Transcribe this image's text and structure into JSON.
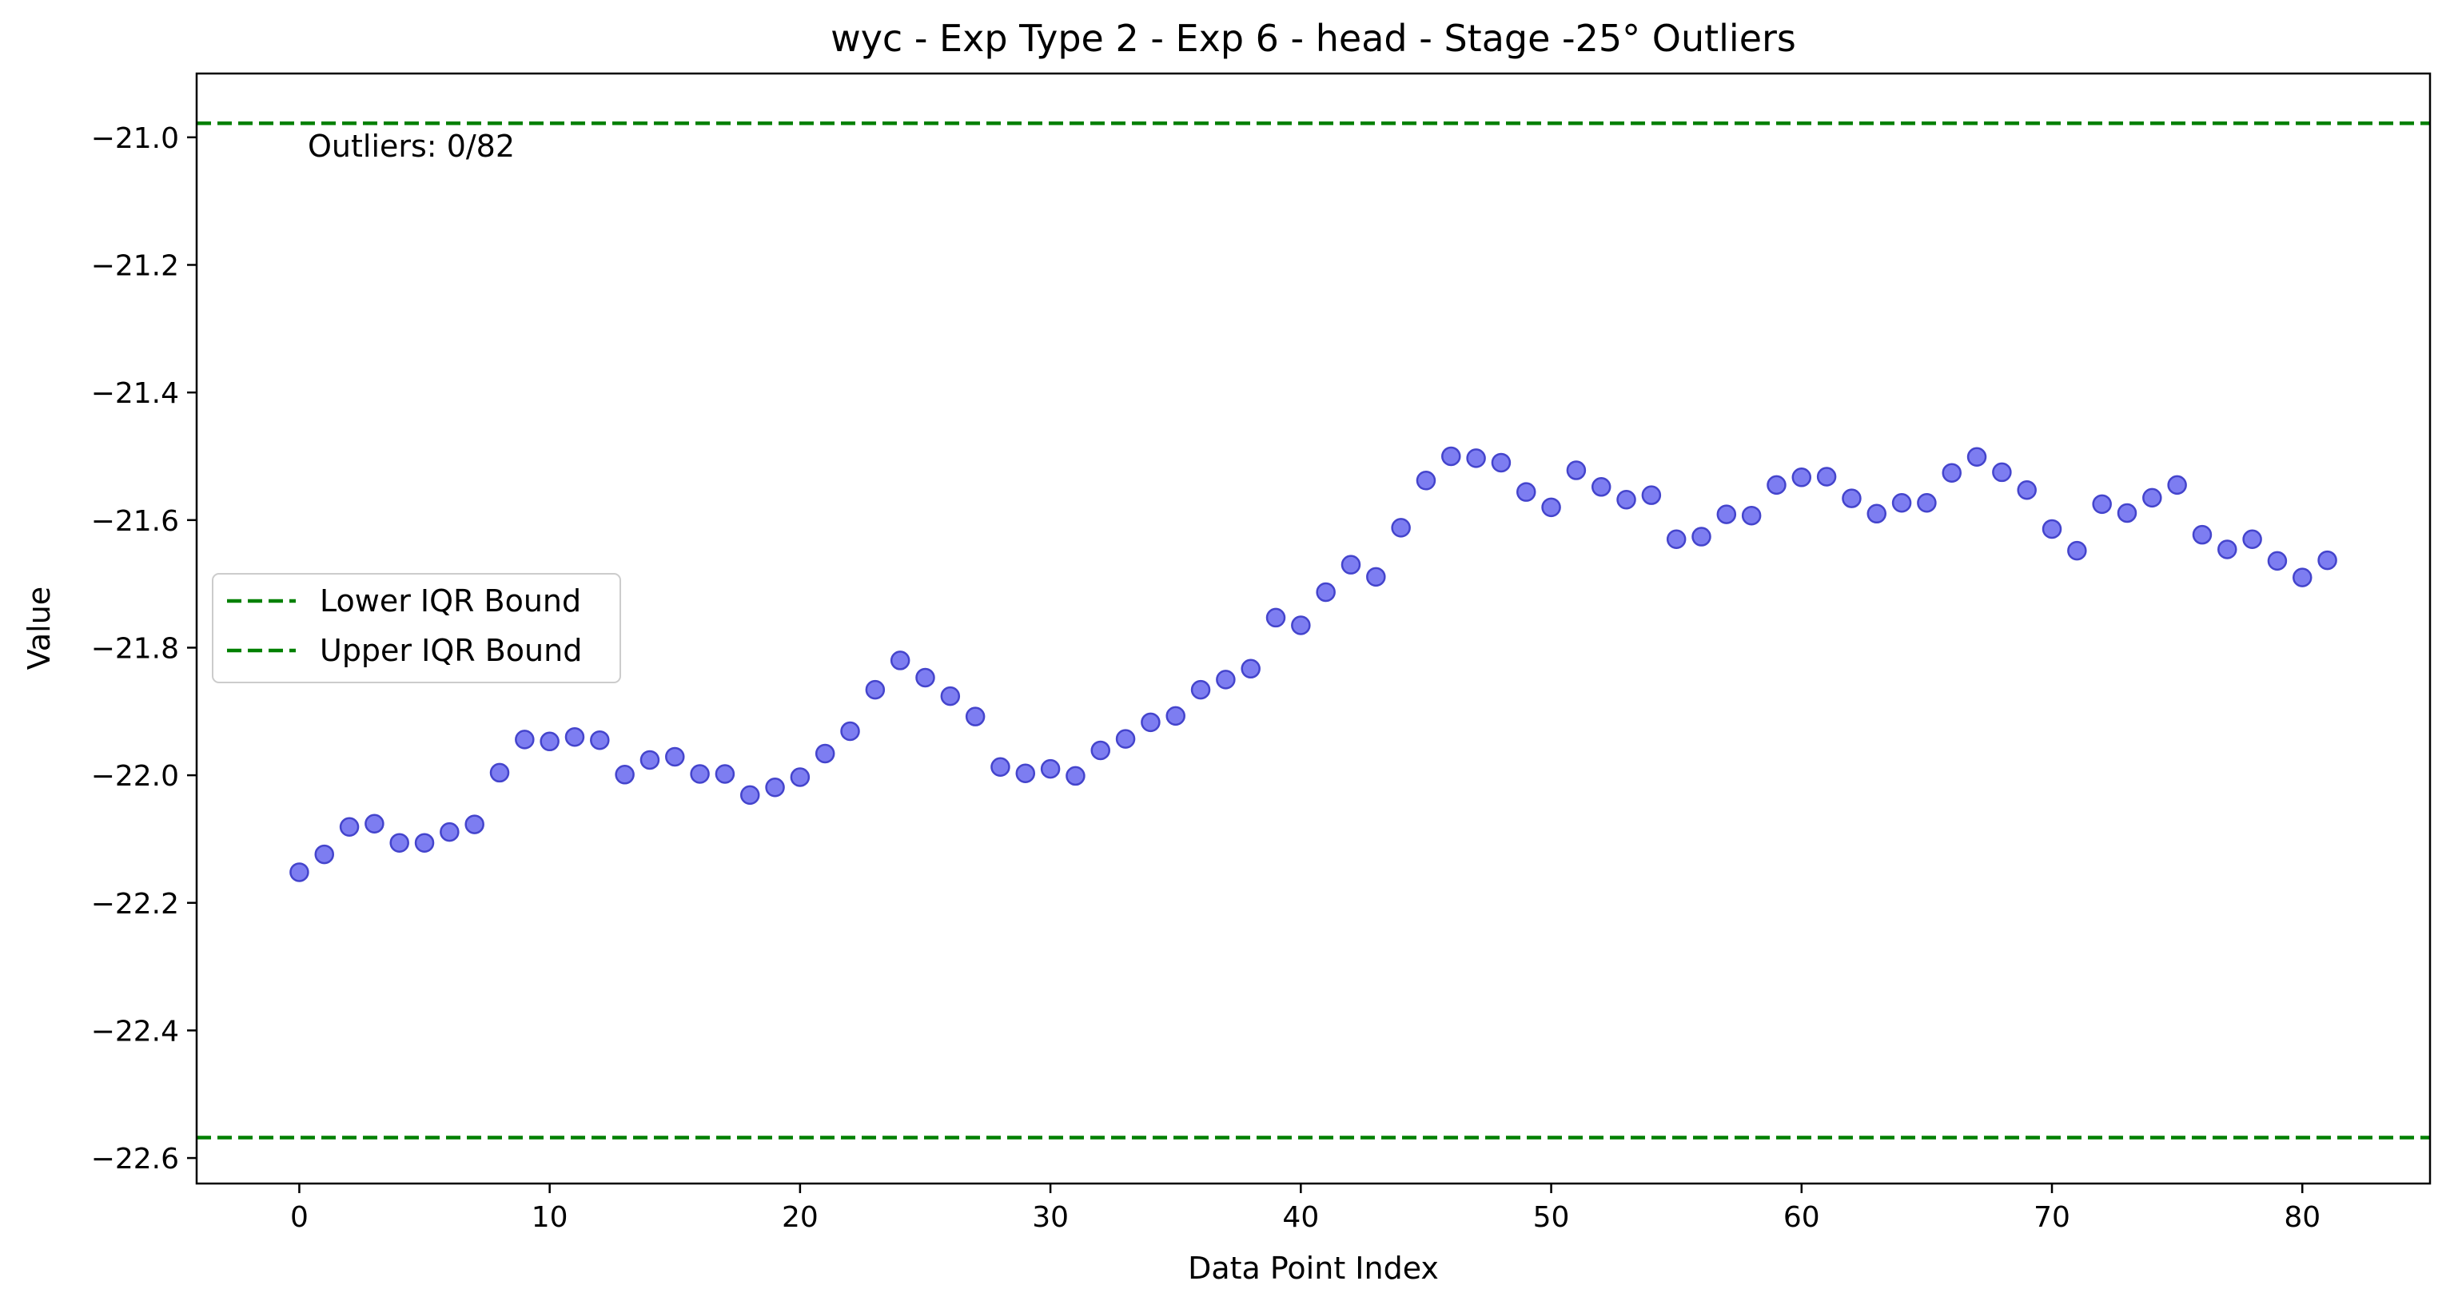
{
  "chart_data": {
    "type": "scatter",
    "title": "wyc - Exp Type 2 - Exp 6 - head - Stage -25° Outliers",
    "xlabel": "Data Point Index",
    "ylabel": "Value",
    "xlim": [
      -4.1,
      85.1
    ],
    "ylim": [
      -22.64,
      -20.9
    ],
    "x_ticks": [
      0,
      10,
      20,
      30,
      40,
      50,
      60,
      70,
      80
    ],
    "y_ticks": [
      -21.0,
      -21.2,
      -21.4,
      -21.6,
      -21.8,
      -22.0,
      -22.2,
      -22.4,
      -22.6
    ],
    "x_tick_labels": [
      "0",
      "10",
      "20",
      "30",
      "40",
      "50",
      "60",
      "70",
      "80"
    ],
    "y_tick_labels": [
      "−21.0",
      "−21.2",
      "−21.4",
      "−21.6",
      "−21.8",
      "−22.0",
      "−22.2",
      "−22.4",
      "−22.6"
    ],
    "grid": false,
    "legend_position": "center-left",
    "series": [
      {
        "marker_color": "#6666ee",
        "marker_edge_color": "#4444cc",
        "x": [
          0,
          1,
          2,
          3,
          4,
          5,
          6,
          7,
          8,
          9,
          10,
          11,
          12,
          13,
          14,
          15,
          16,
          17,
          18,
          19,
          20,
          21,
          22,
          23,
          24,
          25,
          26,
          27,
          28,
          29,
          30,
          31,
          32,
          33,
          34,
          35,
          36,
          37,
          38,
          39,
          40,
          41,
          42,
          43,
          44,
          45,
          46,
          47,
          48,
          49,
          50,
          51,
          52,
          53,
          54,
          55,
          56,
          57,
          58,
          59,
          60,
          61,
          62,
          63,
          64,
          65,
          66,
          67,
          68,
          69,
          70,
          71,
          72,
          73,
          74,
          75,
          76,
          77,
          78,
          79,
          80,
          81
        ],
        "y": [
          -22.152,
          -22.124,
          -22.081,
          -22.076,
          -22.106,
          -22.106,
          -22.089,
          -22.077,
          -21.996,
          -21.944,
          -21.947,
          -21.94,
          -21.945,
          -21.999,
          -21.976,
          -21.971,
          -21.998,
          -21.998,
          -22.031,
          -22.019,
          -22.003,
          -21.966,
          -21.931,
          -21.866,
          -21.82,
          -21.847,
          -21.876,
          -21.908,
          -21.987,
          -21.997,
          -21.99,
          -22.001,
          -21.961,
          -21.943,
          -21.917,
          -21.907,
          -21.866,
          -21.85,
          -21.833,
          -21.753,
          -21.765,
          -21.713,
          -21.67,
          -21.689,
          -21.612,
          -21.538,
          -21.5,
          -21.503,
          -21.51,
          -21.556,
          -21.58,
          -21.522,
          -21.548,
          -21.568,
          -21.561,
          -21.63,
          -21.626,
          -21.591,
          -21.593,
          -21.545,
          -21.533,
          -21.532,
          -21.566,
          -21.59,
          -21.573,
          -21.573,
          -21.526,
          -21.501,
          -21.525,
          -21.553,
          -21.614,
          -21.648,
          -21.575,
          -21.589,
          -21.565,
          -21.545,
          -21.623,
          -21.646,
          -21.63,
          -21.664,
          -21.69,
          -21.663
        ]
      }
    ],
    "hlines": [
      {
        "label": "Lower IQR Bound",
        "y": -22.568,
        "color": "#008000",
        "style": "dashed"
      },
      {
        "label": "Upper IQR Bound",
        "y": -20.978,
        "color": "#008000",
        "style": "dashed"
      }
    ],
    "annotation": "Outliers: 0/82"
  }
}
